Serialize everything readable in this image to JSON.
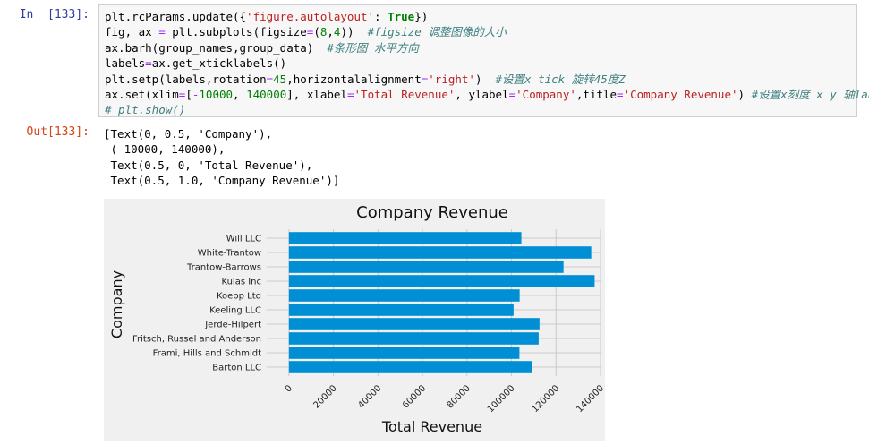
{
  "cell": {
    "in_prompt": "In  [133]:",
    "out_prompt": "Out[133]:",
    "code_lines": [
      [
        [
          "plt.rcParams.update({",
          "tx"
        ],
        [
          "'figure.autolayout'",
          "st"
        ],
        [
          ": ",
          "tx"
        ],
        [
          "True",
          "kw"
        ],
        [
          "})",
          "tx"
        ]
      ],
      [
        [
          "fig, ax ",
          "tx"
        ],
        [
          "=",
          "op"
        ],
        [
          " plt.subplots(figsize",
          "tx"
        ],
        [
          "=",
          "op"
        ],
        [
          "(",
          "tx"
        ],
        [
          "8",
          "nm"
        ],
        [
          ",",
          "tx"
        ],
        [
          "4",
          "nm"
        ],
        [
          "))  ",
          "tx"
        ],
        [
          "#figsize 调整图像的大小",
          "cm"
        ]
      ],
      [
        [
          "ax.barh(group_names,group_data)  ",
          "tx"
        ],
        [
          "#条形图 水平方向",
          "cm"
        ]
      ],
      [
        [
          "labels",
          "tx"
        ],
        [
          "=",
          "op"
        ],
        [
          "ax.get_xticklabels()",
          "tx"
        ]
      ],
      [
        [
          "plt.setp(labels,rotation",
          "tx"
        ],
        [
          "=",
          "op"
        ],
        [
          "45",
          "nm"
        ],
        [
          ",horizontalalignment",
          "tx"
        ],
        [
          "=",
          "op"
        ],
        [
          "'right'",
          "st"
        ],
        [
          ")  ",
          "tx"
        ],
        [
          "#设置x tick 旋转45度Z",
          "cm"
        ]
      ],
      [
        [
          "ax.set(xlim",
          "tx"
        ],
        [
          "=",
          "op"
        ],
        [
          "[",
          "tx"
        ],
        [
          "-",
          "op"
        ],
        [
          "10000",
          "nm"
        ],
        [
          ", ",
          "tx"
        ],
        [
          "140000",
          "nm"
        ],
        [
          "], xlabel",
          "tx"
        ],
        [
          "=",
          "op"
        ],
        [
          "'Total Revenue'",
          "st"
        ],
        [
          ", ylabel",
          "tx"
        ],
        [
          "=",
          "op"
        ],
        [
          "'Company'",
          "st"
        ],
        [
          ",title",
          "tx"
        ],
        [
          "=",
          "op"
        ],
        [
          "'Company Revenue'",
          "st"
        ],
        [
          ") ",
          "tx"
        ],
        [
          "#设置x刻度 x y 轴label",
          "cm"
        ]
      ],
      [
        [
          "# plt.show()",
          "cm"
        ]
      ]
    ],
    "output_lines": [
      "[Text(0, 0.5, 'Company'),",
      " (-10000, 140000),",
      " Text(0.5, 0, 'Total Revenue'),",
      " Text(0.5, 1.0, 'Company Revenue')]"
    ]
  },
  "chart_data": {
    "type": "bar",
    "orientation": "horizontal",
    "title": "Company Revenue",
    "xlabel": "Total Revenue",
    "ylabel": "Company",
    "xlim": [
      -10000,
      140000
    ],
    "xticks": [
      0,
      20000,
      40000,
      60000,
      80000,
      100000,
      120000,
      140000
    ],
    "xtick_labels": [
      "0",
      "20000",
      "40000",
      "60000",
      "80000",
      "100000",
      "120000",
      "140000"
    ],
    "categories": [
      "Barton LLC",
      "Frami, Hills and Schmidt",
      "Fritsch, Russel and Anderson",
      "Jerde-Hilpert",
      "Keeling LLC",
      "Koepp Ltd",
      "Kulas Inc",
      "Trantow-Barrows",
      "White-Trantow",
      "Will LLC"
    ],
    "values": [
      109438.5,
      103569.59,
      112214.71,
      112591.43,
      100934.3,
      103660.54,
      137351.96,
      123381.38,
      135841.99,
      104437.6
    ],
    "grid": true,
    "colors": {
      "bar": "#008fd5",
      "background": "#f0f0f0",
      "grid": "#cbcbcb"
    }
  }
}
